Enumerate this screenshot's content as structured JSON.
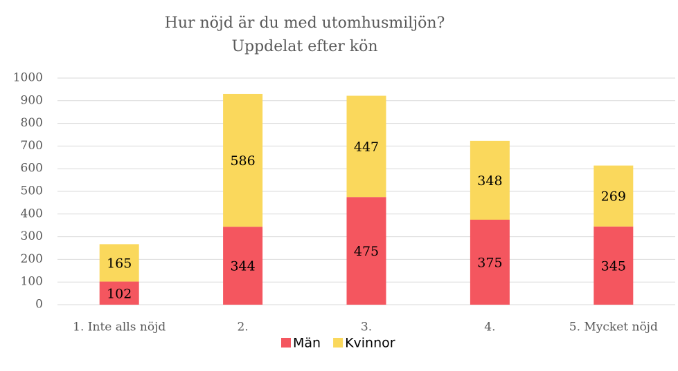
{
  "chart_data": {
    "type": "stacked_bar",
    "title": "Hur nöjd är du med utomhusmiljön?",
    "subtitle": "Uppdelat efter kön",
    "categories": [
      "1. Inte alls nöjd",
      "2.",
      "3.",
      "4.",
      "5. Mycket nöjd"
    ],
    "series": [
      {
        "name": "Män",
        "color": "#f4565f",
        "values": [
          102,
          344,
          475,
          375,
          345
        ]
      },
      {
        "name": "Kvinnor",
        "color": "#fad85c",
        "values": [
          165,
          586,
          447,
          348,
          269
        ]
      }
    ],
    "ylim": [
      0,
      1000
    ],
    "yticks": [
      0,
      100,
      200,
      300,
      400,
      500,
      600,
      700,
      800,
      900,
      1000
    ],
    "grid": true,
    "legend": "bottom"
  }
}
